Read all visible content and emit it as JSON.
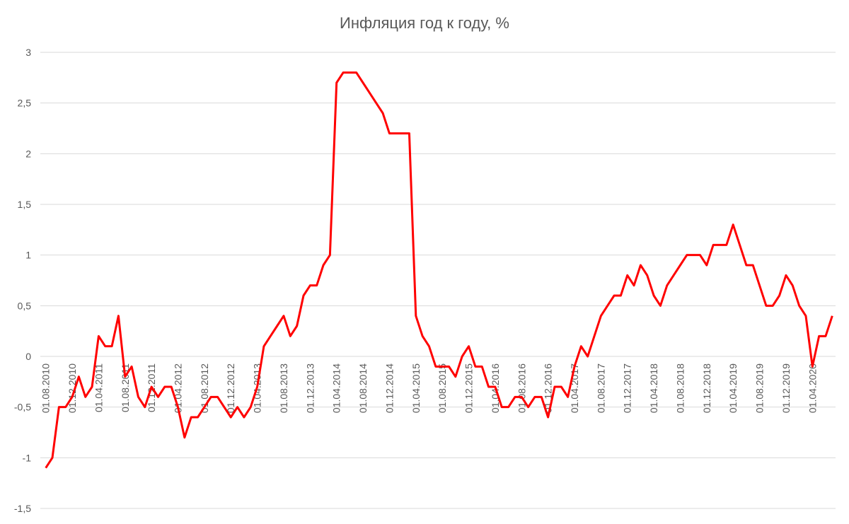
{
  "chart_data": {
    "type": "line",
    "title": "Инфляция год к году, %",
    "categories": [
      "01.08.2010",
      null,
      null,
      null,
      "01.12.2010",
      null,
      null,
      null,
      "01.04.2011",
      null,
      null,
      null,
      "01.08.2011",
      null,
      null,
      null,
      "01.12.2011",
      null,
      null,
      null,
      "01.04.2012",
      null,
      null,
      null,
      "01.08.2012",
      null,
      null,
      null,
      "01.12.2012",
      null,
      null,
      null,
      "01.04.2013",
      null,
      null,
      null,
      "01.08.2013",
      null,
      null,
      null,
      "01.12.2013",
      null,
      null,
      null,
      "01.04.2014",
      null,
      null,
      null,
      "01.08.2014",
      null,
      null,
      null,
      "01.12.2014",
      null,
      null,
      null,
      "01.04.2015",
      null,
      null,
      null,
      "01.08.2015",
      null,
      null,
      null,
      "01.12.2015",
      null,
      null,
      null,
      "01.04.2016",
      null,
      null,
      null,
      "01.08.2016",
      null,
      null,
      null,
      "01.12.2016",
      null,
      null,
      null,
      "01.04.2017",
      null,
      null,
      null,
      "01.08.2017",
      null,
      null,
      null,
      "01.12.2017",
      null,
      null,
      null,
      "01.04.2018",
      null,
      null,
      null,
      "01.08.2018",
      null,
      null,
      null,
      "01.12.2018",
      null,
      null,
      null,
      "01.04.2019",
      null,
      null,
      null,
      "01.08.2019",
      null,
      null,
      null,
      "01.12.2019",
      null,
      null,
      null,
      "01.04.2020",
      null,
      null,
      null
    ],
    "series": [
      {
        "color": "#ff0000",
        "values": [
          -1.1,
          -1.0,
          -0.5,
          -0.5,
          -0.4,
          -0.2,
          -0.4,
          -0.3,
          0.2,
          0.1,
          0.1,
          0.4,
          -0.2,
          -0.1,
          -0.4,
          -0.5,
          -0.3,
          -0.4,
          -0.3,
          -0.3,
          -0.5,
          -0.8,
          -0.6,
          -0.6,
          -0.5,
          -0.4,
          -0.4,
          -0.5,
          -0.6,
          -0.5,
          -0.6,
          -0.5,
          -0.3,
          0.1,
          0.2,
          0.3,
          0.4,
          0.2,
          0.3,
          0.6,
          0.7,
          0.7,
          0.9,
          1.0,
          2.7,
          2.8,
          2.8,
          2.8,
          2.7,
          2.6,
          2.5,
          2.4,
          2.2,
          2.2,
          2.2,
          2.2,
          0.4,
          0.2,
          0.1,
          -0.1,
          -0.1,
          -0.1,
          -0.2,
          0.0,
          0.1,
          -0.1,
          -0.1,
          -0.3,
          -0.3,
          -0.5,
          -0.5,
          -0.4,
          -0.4,
          -0.5,
          -0.4,
          -0.4,
          -0.6,
          -0.3,
          -0.3,
          -0.4,
          -0.1,
          0.1,
          0.0,
          0.2,
          0.4,
          0.5,
          0.6,
          0.6,
          0.8,
          0.7,
          0.9,
          0.8,
          0.6,
          0.5,
          0.7,
          0.8,
          0.9,
          1.0,
          1.0,
          1.0,
          0.9,
          1.1,
          1.1,
          1.1,
          1.3,
          1.1,
          0.9,
          0.9,
          0.7,
          0.5,
          0.5,
          0.6,
          0.8,
          0.7,
          0.5,
          0.4,
          -0.1,
          0.2,
          0.2,
          0.4
        ]
      }
    ],
    "ylim": [
      -1.5,
      3
    ],
    "yticks": [
      {
        "value": -1.5,
        "label": "-1,5"
      },
      -1,
      {
        "value": -0.5,
        "label": "-0,5"
      },
      0,
      {
        "value": 0.5,
        "label": "0,5"
      },
      1,
      {
        "value": 1.5,
        "label": "1,5"
      },
      2,
      {
        "value": 2.5,
        "label": "2,5"
      },
      3
    ],
    "grid": true
  }
}
